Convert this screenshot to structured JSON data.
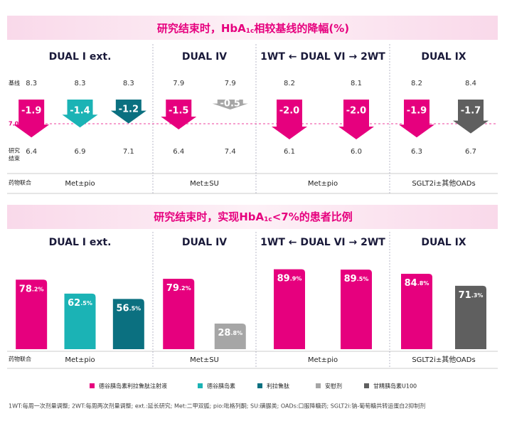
{
  "chart_data": [
    {
      "type": "arrow",
      "title": [
        "研究结束时，HbA",
        "1c",
        "相较基线的降幅(%)"
      ],
      "row_labels": {
        "baseline": "基线",
        "end": [
          "研究",
          "结束"
        ],
        "combo": "药物联合"
      },
      "reference_label": "7.0%",
      "panels": [
        {
          "title": "DUAL I ext.",
          "combo": "Met±pio",
          "colors": [
            "#e6007e",
            "#1bb3b5",
            "#0b7080"
          ],
          "baseline": [
            8.3,
            8.3,
            8.3
          ],
          "change": [
            -1.9,
            -1.4,
            -1.2
          ],
          "end": [
            6.4,
            6.9,
            7.1
          ]
        },
        {
          "title": "DUAL IV",
          "combo": "Met±SU",
          "colors": [
            "#e6007e",
            "#a6a6a6"
          ],
          "baseline": [
            7.9,
            7.9
          ],
          "change": [
            -1.5,
            -0.5
          ],
          "end": [
            6.4,
            7.4
          ]
        },
        {
          "title": "1WT ← DUAL VI → 2WT",
          "combo": "Met±pio",
          "colors": [
            "#e6007e",
            "#e6007e"
          ],
          "baseline": [
            8.2,
            8.1
          ],
          "change": [
            -2.0,
            -2.0
          ],
          "change_labels": [
            "-2.0",
            "-2.0"
          ],
          "end": [
            6.1,
            6.0
          ],
          "end_labels": [
            "6.1",
            "6.0"
          ]
        },
        {
          "title": "DUAL IX",
          "combo": "SGLT2i±其他OADs",
          "colors": [
            "#e6007e",
            "#5f5f5f"
          ],
          "baseline": [
            8.2,
            8.4
          ],
          "change": [
            -1.9,
            -1.7
          ],
          "end": [
            6.3,
            6.7
          ]
        }
      ]
    },
    {
      "type": "bar",
      "title": [
        "研究结束时，实现HbA",
        "1c",
        "<7%的患者比例"
      ],
      "ylim": [
        0,
        100
      ],
      "row_labels": {
        "combo": "药物联合"
      },
      "panels": [
        {
          "title": "DUAL I ext.",
          "combo": "Met±pio",
          "colors": [
            "#e6007e",
            "#1bb3b5",
            "#0b7080"
          ],
          "values": [
            78.2,
            62.5,
            56.5
          ],
          "value_labels": [
            "78.2%",
            "62.5%",
            "56.5%"
          ]
        },
        {
          "title": "DUAL IV",
          "combo": "Met±SU",
          "colors": [
            "#e6007e",
            "#a6a6a6"
          ],
          "values": [
            79.2,
            28.8
          ],
          "value_labels": [
            "79.2%",
            "28.8%"
          ]
        },
        {
          "title": "1WT ← DUAL VI → 2WT",
          "combo": "Met±pio",
          "colors": [
            "#e6007e",
            "#e6007e"
          ],
          "values": [
            89.9,
            89.5
          ],
          "value_labels": [
            "89.9%",
            "89.5%"
          ]
        },
        {
          "title": "DUAL IX",
          "combo": "SGLT2i±其他OADs",
          "colors": [
            "#e6007e",
            "#5f5f5f"
          ],
          "values": [
            84.8,
            71.3
          ],
          "value_labels": [
            "84.8%",
            "71.3%"
          ]
        }
      ]
    }
  ],
  "legend": [
    {
      "name": "德谷胰岛素利拉鲁肽注射液",
      "color": "#e6007e"
    },
    {
      "name": "德谷胰岛素",
      "color": "#1bb3b5"
    },
    {
      "name": "利拉鲁肽",
      "color": "#0b7080"
    },
    {
      "name": "安慰剂",
      "color": "#a6a6a6"
    },
    {
      "name": "甘精胰岛素U100",
      "color": "#5f5f5f"
    }
  ],
  "footnote": "1WT:每周一次剂量调整; 2WT:每周两次剂量调整; ext.:延长研究; Met:二甲双胍; pio:吡格列酮; SU:磺脲类; OADs:口服降糖药; SGLT2i:钠-葡萄糖共转运蛋白2抑制剂"
}
